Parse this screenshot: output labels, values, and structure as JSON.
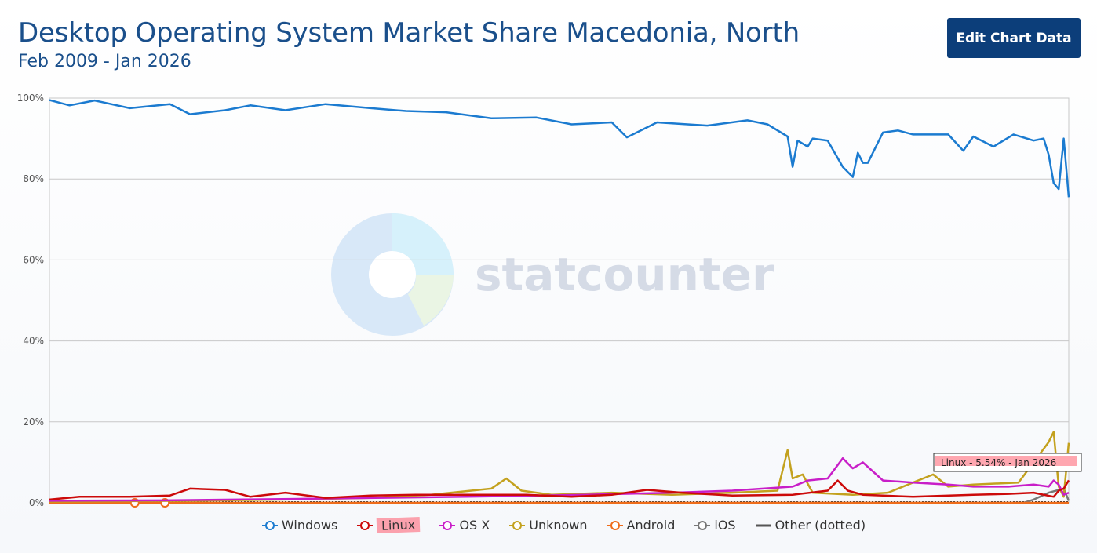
{
  "header": {
    "title": "Desktop Operating System Market Share Macedonia, North",
    "subtitle": "Feb 2009 - Jan 2026",
    "edit_button_label": "Edit Chart Data"
  },
  "watermark": {
    "text": "statcounter"
  },
  "tooltip": {
    "text": "Linux - 5.54% - Jan 2026"
  },
  "chart_data": {
    "type": "line",
    "title": "Desktop Operating System Market Share Macedonia, North",
    "subtitle": "Feb 2009 - Jan 2026",
    "x_range": [
      "2009-02",
      "2026-01"
    ],
    "ylim": [
      0,
      100
    ],
    "y_ticks": [
      "0%",
      "20%",
      "40%",
      "60%",
      "80%",
      "100%"
    ],
    "grid": true,
    "legend_position": "bottom",
    "series": [
      {
        "name": "Windows",
        "color": "#1b7bd0",
        "keypoints": [
          [
            "2009-02",
            99.5
          ],
          [
            "2009-06",
            98.2
          ],
          [
            "2009-11",
            99.4
          ],
          [
            "2010-06",
            97.5
          ],
          [
            "2011-02",
            98.5
          ],
          [
            "2011-06",
            96.0
          ],
          [
            "2012-01",
            97.0
          ],
          [
            "2012-06",
            98.2
          ],
          [
            "2013-01",
            97.0
          ],
          [
            "2013-09",
            98.5
          ],
          [
            "2014-06",
            97.5
          ],
          [
            "2015-01",
            96.8
          ],
          [
            "2015-09",
            96.5
          ],
          [
            "2016-06",
            95.0
          ],
          [
            "2017-03",
            95.2
          ],
          [
            "2017-10",
            93.5
          ],
          [
            "2018-06",
            94.0
          ],
          [
            "2018-09",
            90.3
          ],
          [
            "2019-03",
            94.0
          ],
          [
            "2020-01",
            93.2
          ],
          [
            "2020-09",
            94.5
          ],
          [
            "2021-01",
            93.5
          ],
          [
            "2021-05",
            90.5
          ],
          [
            "2021-06",
            83.0
          ],
          [
            "2021-07",
            89.5
          ],
          [
            "2021-09",
            88.0
          ],
          [
            "2021-10",
            90.0
          ],
          [
            "2022-01",
            89.5
          ],
          [
            "2022-04",
            83.0
          ],
          [
            "2022-06",
            80.5
          ],
          [
            "2022-07",
            86.5
          ],
          [
            "2022-08",
            84.0
          ],
          [
            "2022-09",
            84.0
          ],
          [
            "2022-12",
            91.5
          ],
          [
            "2023-03",
            92.0
          ],
          [
            "2023-06",
            91.0
          ],
          [
            "2024-01",
            91.0
          ],
          [
            "2024-04",
            87.0
          ],
          [
            "2024-06",
            90.5
          ],
          [
            "2024-10",
            88.0
          ],
          [
            "2025-02",
            91.0
          ],
          [
            "2025-06",
            89.5
          ],
          [
            "2025-08",
            90.0
          ],
          [
            "2025-09",
            86.0
          ],
          [
            "2025-10",
            79.0
          ],
          [
            "2025-11",
            77.5
          ],
          [
            "2025-12",
            90.0
          ],
          [
            "2026-01",
            75.5
          ]
        ]
      },
      {
        "name": "Linux",
        "color": "#cc0a0a",
        "keypoints": [
          [
            "2009-02",
            0.8
          ],
          [
            "2009-08",
            1.5
          ],
          [
            "2010-06",
            1.5
          ],
          [
            "2011-02",
            1.8
          ],
          [
            "2011-06",
            3.5
          ],
          [
            "2012-01",
            3.2
          ],
          [
            "2012-06",
            1.5
          ],
          [
            "2013-01",
            2.5
          ],
          [
            "2013-09",
            1.2
          ],
          [
            "2014-06",
            1.8
          ],
          [
            "2015-03",
            2.0
          ],
          [
            "2016-01",
            2.0
          ],
          [
            "2017-01",
            2.0
          ],
          [
            "2017-10",
            1.5
          ],
          [
            "2018-06",
            2.0
          ],
          [
            "2019-01",
            3.2
          ],
          [
            "2019-08",
            2.5
          ],
          [
            "2020-06",
            1.8
          ],
          [
            "2021-06",
            2.0
          ],
          [
            "2022-01",
            3.0
          ],
          [
            "2022-03",
            5.5
          ],
          [
            "2022-05",
            3.0
          ],
          [
            "2022-08",
            2.0
          ],
          [
            "2023-06",
            1.5
          ],
          [
            "2024-06",
            2.0
          ],
          [
            "2025-01",
            2.2
          ],
          [
            "2025-06",
            2.5
          ],
          [
            "2025-10",
            1.5
          ],
          [
            "2025-11",
            3.0
          ],
          [
            "2025-12",
            3.5
          ],
          [
            "2026-01",
            5.54
          ]
        ]
      },
      {
        "name": "OS X",
        "color": "#c81ec8",
        "keypoints": [
          [
            "2009-02",
            0.5
          ],
          [
            "2011-01",
            0.6
          ],
          [
            "2013-06",
            1.0
          ],
          [
            "2016-01",
            1.5
          ],
          [
            "2018-01",
            2.0
          ],
          [
            "2019-06",
            2.5
          ],
          [
            "2020-06",
            3.0
          ],
          [
            "2021-06",
            4.0
          ],
          [
            "2021-09",
            5.5
          ],
          [
            "2022-01",
            6.0
          ],
          [
            "2022-04",
            11.0
          ],
          [
            "2022-06",
            8.5
          ],
          [
            "2022-08",
            10.0
          ],
          [
            "2022-12",
            5.5
          ],
          [
            "2023-06",
            5.0
          ],
          [
            "2024-01",
            4.5
          ],
          [
            "2024-06",
            4.0
          ],
          [
            "2025-01",
            4.0
          ],
          [
            "2025-06",
            4.5
          ],
          [
            "2025-09",
            4.0
          ],
          [
            "2025-10",
            5.5
          ],
          [
            "2025-11",
            4.5
          ],
          [
            "2025-12",
            2.0
          ],
          [
            "2026-01",
            2.5
          ]
        ]
      },
      {
        "name": "Unknown",
        "color": "#c3a11e",
        "keypoints": [
          [
            "2009-02",
            0.3
          ],
          [
            "2011-06",
            0.5
          ],
          [
            "2013-01",
            0.8
          ],
          [
            "2014-06",
            1.2
          ],
          [
            "2015-06",
            2.0
          ],
          [
            "2016-06",
            3.5
          ],
          [
            "2016-09",
            6.0
          ],
          [
            "2016-12",
            3.0
          ],
          [
            "2017-06",
            2.0
          ],
          [
            "2018-06",
            2.5
          ],
          [
            "2019-06",
            2.0
          ],
          [
            "2020-06",
            2.5
          ],
          [
            "2021-03",
            3.0
          ],
          [
            "2021-05",
            13.0
          ],
          [
            "2021-06",
            6.0
          ],
          [
            "2021-08",
            7.0
          ],
          [
            "2021-10",
            2.5
          ],
          [
            "2022-06",
            2.0
          ],
          [
            "2023-01",
            2.5
          ],
          [
            "2023-06",
            5.0
          ],
          [
            "2023-10",
            7.0
          ],
          [
            "2024-01",
            4.0
          ],
          [
            "2024-06",
            4.5
          ],
          [
            "2025-03",
            5.0
          ],
          [
            "2025-09",
            15.0
          ],
          [
            "2025-10",
            17.5
          ],
          [
            "2025-11",
            4.0
          ],
          [
            "2025-12",
            1.5
          ],
          [
            "2026-01",
            14.8
          ]
        ]
      },
      {
        "name": "Android",
        "color": "#ef6c1a",
        "keypoints": [
          [
            "2009-02",
            0.0
          ],
          [
            "2010-06",
            0.0
          ],
          [
            "2010-07",
            0.0
          ],
          [
            "2011-01",
            0.0
          ],
          [
            "2011-06",
            0.0
          ],
          [
            "2026-01",
            0.0
          ]
        ]
      },
      {
        "name": "iOS",
        "color": "#777777",
        "keypoints": [
          [
            "2009-02",
            0.0
          ],
          [
            "2025-04",
            0.0
          ],
          [
            "2025-06",
            0.8
          ],
          [
            "2025-09",
            2.5
          ],
          [
            "2025-12",
            3.5
          ],
          [
            "2026-01",
            0.5
          ]
        ]
      },
      {
        "name": "Other (dotted)",
        "color": "#333333",
        "dotted": true,
        "keypoints": [
          [
            "2009-02",
            0.1
          ],
          [
            "2026-01",
            0.1
          ]
        ]
      }
    ]
  }
}
